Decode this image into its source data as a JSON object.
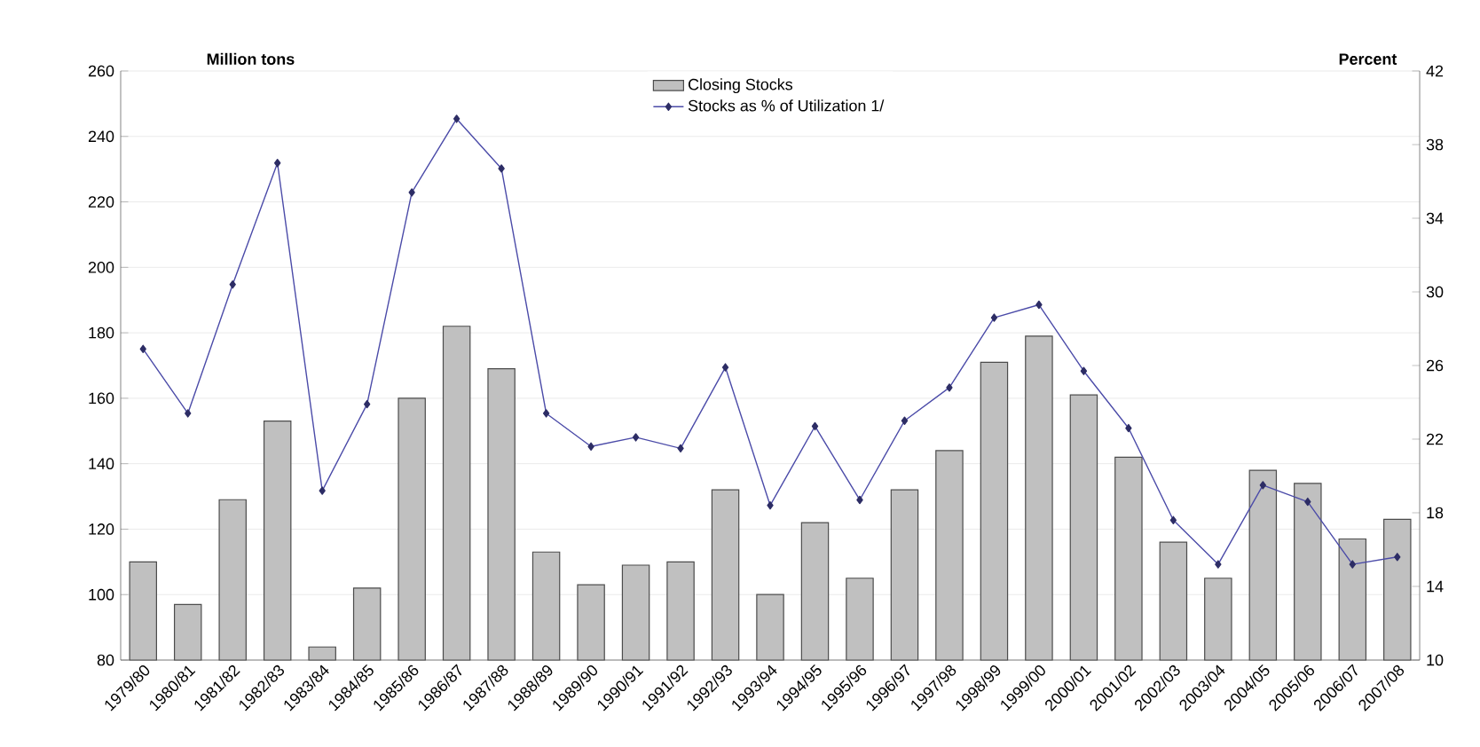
{
  "chart_data": {
    "type": "bar",
    "ylabel": "Million tons",
    "y2label": "Percent",
    "categories": [
      "1979/80",
      "1980/81",
      "1981/82",
      "1982/83",
      "1983/84",
      "1984/85",
      "1985/86",
      "1986/87",
      "1987/88",
      "1988/89",
      "1989/90",
      "1990/91",
      "1991/92",
      "1992/93",
      "1993/94",
      "1994/95",
      "1995/96",
      "1996/97",
      "1997/98",
      "1998/99",
      "1999/00",
      "2000/01",
      "2001/02",
      "2002/03",
      "2003/04",
      "2004/05",
      "2005/06",
      "2006/07",
      "2007/08"
    ],
    "series": [
      {
        "name": "Closing Stocks",
        "color": "#c0c0c0",
        "values": [
          110,
          97,
          129,
          153,
          84,
          102,
          160,
          182,
          169,
          113,
          103,
          109,
          110,
          132,
          100,
          122,
          105,
          132,
          144,
          171,
          179,
          161,
          142,
          116,
          105,
          138,
          134,
          117,
          123
        ]
      },
      {
        "name": "Stocks as % of Utilization 1/",
        "type": "line",
        "axis": "y2",
        "color": "#4b4ba8",
        "marker": "diamond",
        "line_style": "solid",
        "values": [
          26.9,
          23.4,
          30.4,
          37.0,
          19.2,
          23.9,
          35.4,
          39.4,
          36.7,
          23.4,
          21.6,
          22.1,
          21.5,
          25.9,
          18.4,
          22.7,
          18.7,
          23.0,
          24.8,
          28.6,
          29.3,
          25.7,
          22.6,
          17.6,
          15.2,
          19.5,
          18.6,
          15.2,
          15.6
        ]
      }
    ],
    "ylim": [
      80,
      260
    ],
    "yticks": [
      80,
      100,
      120,
      140,
      160,
      180,
      200,
      220,
      240,
      260
    ],
    "y2lim": [
      10,
      42
    ],
    "y2ticks": [
      10,
      14,
      18,
      22,
      26,
      30,
      34,
      38,
      42
    ],
    "grid": "y",
    "legend": "top"
  }
}
